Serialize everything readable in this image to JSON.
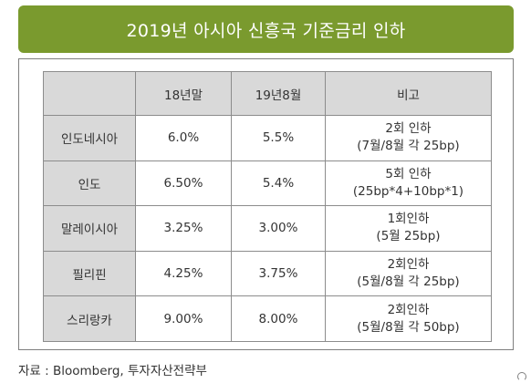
{
  "title": "2019년 아시아 신흥국 기준금리 인하",
  "table": {
    "headers": [
      "",
      "18년말",
      "19년8월",
      "비고"
    ],
    "rows": [
      {
        "country": "인도네시아",
        "end_2018": "6.0%",
        "aug_2019": "5.5%",
        "note_line1": "2회 인하",
        "note_line2": "(7월/8월 각 25bp)"
      },
      {
        "country": "인도",
        "end_2018": "6.50%",
        "aug_2019": "5.4%",
        "note_line1": "5회 인하",
        "note_line2": "(25bp*4+10bp*1)"
      },
      {
        "country": "말레이시아",
        "end_2018": "3.25%",
        "aug_2019": "3.00%",
        "note_line1": "1회인하",
        "note_line2": "(5월 25bp)"
      },
      {
        "country": "필리핀",
        "end_2018": "4.25%",
        "aug_2019": "3.75%",
        "note_line1": "2회인하",
        "note_line2": "(5월/8월 각 25bp)"
      },
      {
        "country": "스리랑카",
        "end_2018": "9.00%",
        "aug_2019": "8.00%",
        "note_line1": "2회인하",
        "note_line2": "(5월/8월 각 50bp)"
      }
    ]
  },
  "source": "자료 : Bloomberg, 투자자산전략부",
  "colors": {
    "title_bg": "#7a9a2e",
    "header_bg": "#d9d9d9",
    "border": "#8c8c8c",
    "text": "#333333"
  }
}
